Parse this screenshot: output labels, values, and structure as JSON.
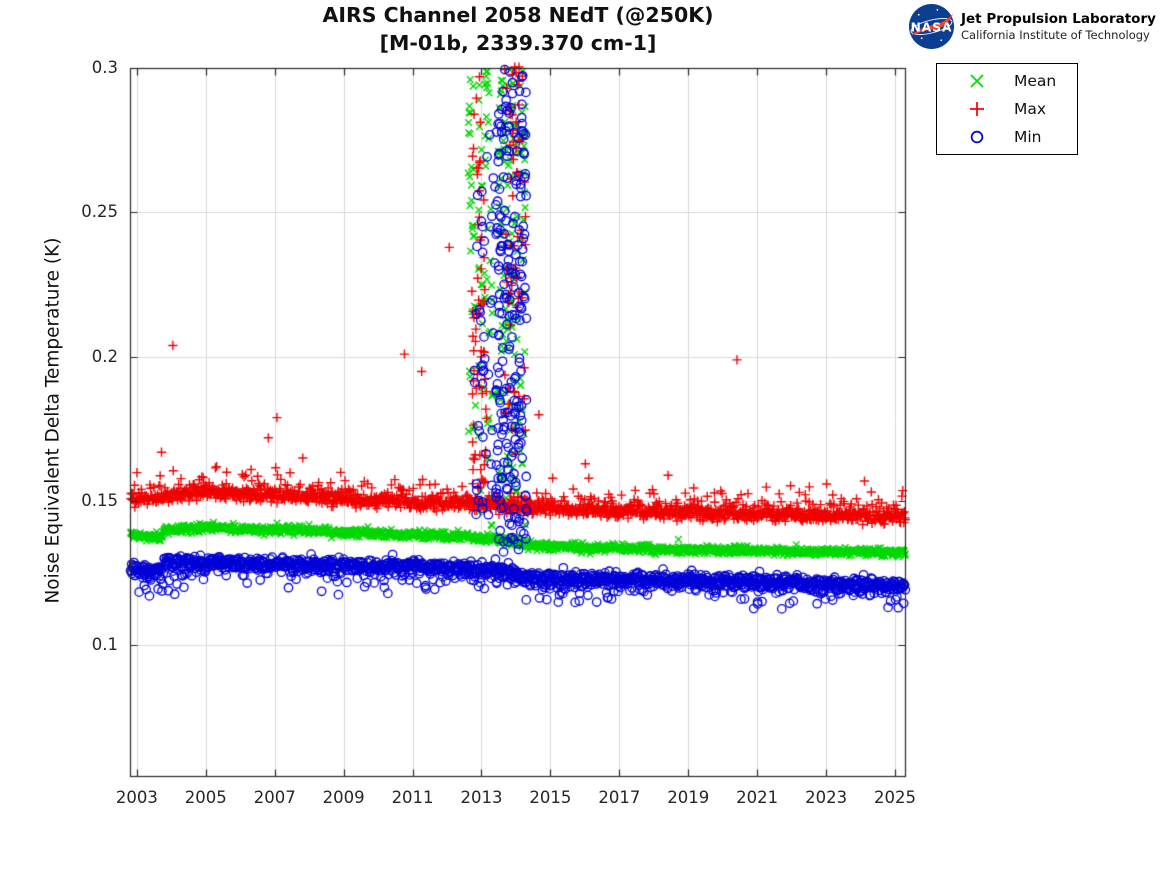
{
  "header": {
    "logo": {
      "nasa_text": "NASA",
      "org_name": "Jet Propulsion Laboratory",
      "org_sub": "California Institute of Technology"
    }
  },
  "chart_data": {
    "type": "scatter",
    "title": "AIRS Channel 2058 NEdT (@250K)",
    "subtitle": "[M-01b, 2339.370 cm-1]",
    "xlabel": "",
    "ylabel": "Noise Equivalent Delta Temperature (K)",
    "xlim": [
      2002.8,
      2025.29
    ],
    "ylim": [
      0.0546,
      0.3
    ],
    "xticks": [
      2003,
      2005,
      2007,
      2009,
      2011,
      2013,
      2015,
      2017,
      2019,
      2021,
      2023,
      2025
    ],
    "xtick_labels": [
      "2003",
      "2005",
      "2007",
      "2009",
      "2011",
      "2013",
      "2015",
      "2017",
      "2019",
      "2021",
      "2023",
      "2025"
    ],
    "yticks": [
      0.1,
      0.15,
      0.2,
      0.25,
      0.3
    ],
    "ytick_labels": [
      "0.1",
      "0.15",
      "0.2",
      "0.25",
      "0.3"
    ],
    "grid": true,
    "axis_color": "#262626",
    "grid_color": "#d9d9d9",
    "legend": {
      "position": "top-right-outside",
      "items": [
        {
          "label": "Mean",
          "marker": "x",
          "color": "#00d800"
        },
        {
          "label": "Max",
          "marker": "+",
          "color": "#f20000"
        },
        {
          "label": "Min",
          "marker": "o",
          "color": "#0000d8"
        }
      ]
    },
    "series": [
      {
        "name": "Mean",
        "marker": "x",
        "color": "#00d800",
        "n": 1600,
        "sigma": 0.0007,
        "bump_prob": 0,
        "bump_scale": 0,
        "bump_cap": 0,
        "bump_sign": 1,
        "trend": [
          [
            2002.8,
            0.1383
          ],
          [
            2003.74,
            0.1376
          ],
          [
            2003.76,
            0.1402
          ],
          [
            2005.2,
            0.1409
          ],
          [
            2007.0,
            0.1403
          ],
          [
            2009.0,
            0.1393
          ],
          [
            2011.0,
            0.1384
          ],
          [
            2012.5,
            0.1377
          ],
          [
            2013.4,
            0.1368
          ],
          [
            2014.3,
            0.135
          ],
          [
            2016.0,
            0.134
          ],
          [
            2018.0,
            0.1334
          ],
          [
            2020.0,
            0.133
          ],
          [
            2022.0,
            0.1327
          ],
          [
            2025.29,
            0.1322
          ]
        ]
      },
      {
        "name": "Max",
        "marker": "+",
        "color": "#f20000",
        "n": 1600,
        "sigma": 0.0011,
        "bump_prob": 0.35,
        "bump_scale": 0.0025,
        "bump_cap": 0.008,
        "bump_sign": 1,
        "trend": [
          [
            2002.8,
            0.1505
          ],
          [
            2003.74,
            0.151
          ],
          [
            2003.76,
            0.1518
          ],
          [
            2005.5,
            0.1528
          ],
          [
            2007.5,
            0.1515
          ],
          [
            2009.5,
            0.1502
          ],
          [
            2011.5,
            0.1492
          ],
          [
            2013.4,
            0.1487
          ],
          [
            2014.3,
            0.1478
          ],
          [
            2016.0,
            0.1468
          ],
          [
            2018.0,
            0.1462
          ],
          [
            2020.0,
            0.1456
          ],
          [
            2022.0,
            0.145
          ],
          [
            2025.29,
            0.1443
          ]
        ]
      },
      {
        "name": "Min",
        "marker": "o",
        "color": "#0000d8",
        "n": 1600,
        "sigma": 0.0011,
        "bump_prob": 0.3,
        "bump_scale": 0.002,
        "bump_cap": 0.008,
        "bump_sign": -1,
        "trend": [
          [
            2002.8,
            0.1268
          ],
          [
            2003.74,
            0.126
          ],
          [
            2003.76,
            0.129
          ],
          [
            2005.0,
            0.1292
          ],
          [
            2007.0,
            0.1285
          ],
          [
            2009.0,
            0.1278
          ],
          [
            2011.0,
            0.1272
          ],
          [
            2013.4,
            0.1262
          ],
          [
            2014.3,
            0.124
          ],
          [
            2016.0,
            0.1232
          ],
          [
            2018.0,
            0.1228
          ],
          [
            2020.0,
            0.1223
          ],
          [
            2022.0,
            0.1218
          ],
          [
            2025.29,
            0.1206
          ]
        ],
        "extra_windows": [
          {
            "t0": 2002.85,
            "t1": 2004.4,
            "prob": 0.03,
            "scale": 0.005,
            "cap": 0.009
          },
          {
            "t0": 2014.3,
            "t1": 2017.0,
            "prob": 0.18,
            "scale": 0.0022,
            "cap": 0.008
          }
        ]
      }
    ],
    "episodes": [
      {
        "series": "Mean",
        "t0": 2012.6,
        "t1": 2013.32,
        "n": 85,
        "vmin": 0.141,
        "vmax": 0.3,
        "pow": 0.85
      },
      {
        "series": "Max",
        "t0": 2012.7,
        "t1": 2013.15,
        "n": 65,
        "vmin": 0.152,
        "vmax": 0.298,
        "pow": 1.15
      },
      {
        "series": "Min",
        "t0": 2012.75,
        "t1": 2013.38,
        "n": 45,
        "vmin": 0.136,
        "vmax": 0.287,
        "pow": 1.1
      },
      {
        "series": "Mean",
        "t0": 2013.45,
        "t1": 2014.26,
        "n": 130,
        "vmin": 0.14,
        "vmax": 0.301,
        "pow": 0.8
      },
      {
        "series": "Max",
        "t0": 2013.66,
        "t1": 2014.28,
        "n": 70,
        "vmin": 0.152,
        "vmax": 0.302,
        "pow": 0.7
      },
      {
        "series": "Min",
        "t0": 2013.4,
        "t1": 2014.3,
        "n": 230,
        "vmin": 0.131,
        "vmax": 0.3,
        "pow": 1.05
      }
    ],
    "outliers": [
      {
        "series": "Max",
        "points": [
          [
            2003.7,
            0.167
          ],
          [
            2004.03,
            0.204
          ],
          [
            2005.3,
            0.162
          ],
          [
            2006.3,
            0.161
          ],
          [
            2006.8,
            0.172
          ],
          [
            2007.05,
            0.179
          ],
          [
            2007.8,
            0.165
          ],
          [
            2008.9,
            0.16
          ],
          [
            2010.75,
            0.201
          ],
          [
            2011.25,
            0.195
          ],
          [
            2012.05,
            0.238
          ],
          [
            2013.95,
            0.3005
          ],
          [
            2014.65,
            0.18
          ],
          [
            2015.05,
            0.158
          ],
          [
            2016.0,
            0.163
          ],
          [
            2016.1,
            0.158
          ],
          [
            2018.4,
            0.159
          ],
          [
            2020.4,
            0.199
          ],
          [
            2022.5,
            0.155
          ],
          [
            2023.0,
            0.156
          ],
          [
            2024.1,
            0.157
          ]
        ]
      },
      {
        "series": "Min",
        "points": [
          [
            2003.05,
            0.1185
          ],
          [
            2003.2,
            0.1208
          ],
          [
            2003.35,
            0.1172
          ],
          [
            2003.6,
            0.1196
          ],
          [
            2003.9,
            0.119
          ],
          [
            2004.15,
            0.1213
          ],
          [
            2004.35,
            0.1202
          ],
          [
            2021.0,
            0.1144
          ],
          [
            2021.7,
            0.1127
          ]
        ]
      },
      {
        "series": "Mean",
        "points": [
          [
            2018.7,
            0.1368
          ]
        ]
      }
    ]
  }
}
